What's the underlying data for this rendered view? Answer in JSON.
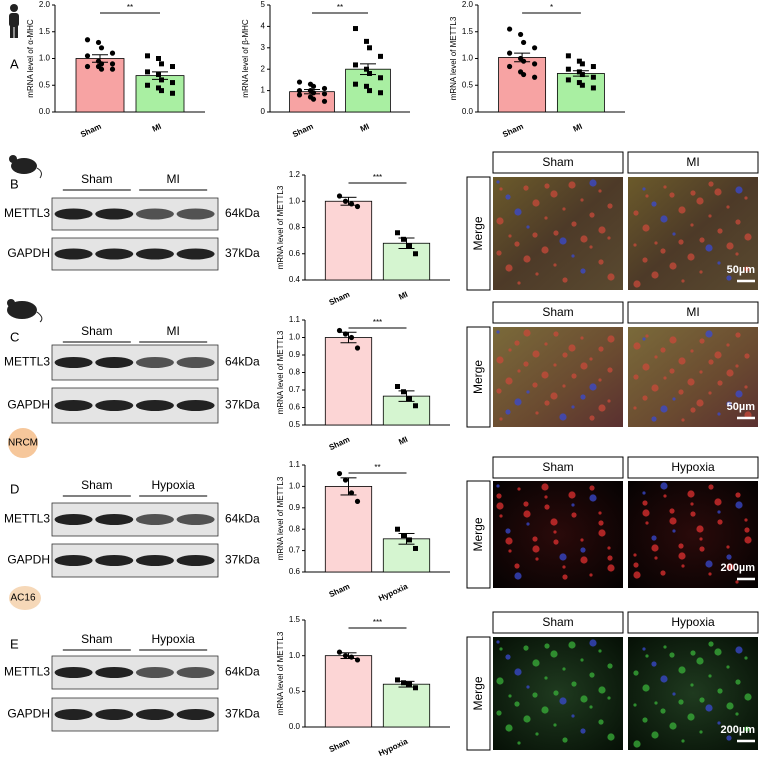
{
  "chart_data": [
    {
      "type": "bar",
      "ylabel": "mRNA level of α-MHC",
      "categories": [
        "Sham",
        "MI"
      ],
      "colors": [
        "#f7a3a3",
        "#a9efa2"
      ],
      "values": [
        1.0,
        0.68
      ],
      "errors": [
        0.07,
        0.07
      ],
      "significance": "**",
      "points": [
        [
          1.35,
          1.3,
          1.2,
          1.1,
          1.05,
          0.95,
          0.9,
          0.9,
          0.85,
          0.85,
          0.8,
          0.8
        ],
        [
          1.05,
          1.0,
          0.9,
          0.85,
          0.75,
          0.7,
          0.6,
          0.55,
          0.5,
          0.45,
          0.4,
          0.35
        ]
      ],
      "ylim": [
        0,
        2.0
      ],
      "yticks": [
        {
          "value": 0,
          "label": "0.0"
        },
        0.5,
        {
          "value": 1.0,
          "label": "1.0"
        },
        1.5,
        {
          "value": 2.0,
          "label": "2.0"
        }
      ]
    },
    {
      "type": "bar",
      "ylabel": "mRNA level of β-MHC",
      "categories": [
        "Sham",
        "MI"
      ],
      "colors": [
        "#f7a3a3",
        "#a9efa2"
      ],
      "values": [
        0.95,
        2.0
      ],
      "errors": [
        0.1,
        0.25
      ],
      "significance": "**",
      "points": [
        [
          1.4,
          1.3,
          1.2,
          1.1,
          1.0,
          1.0,
          0.9,
          0.85,
          0.8,
          0.7,
          0.6,
          0.5
        ],
        [
          3.9,
          3.3,
          3.0,
          2.6,
          2.2,
          2.0,
          1.8,
          1.6,
          1.3,
          1.2,
          1.0,
          0.9
        ]
      ],
      "ylim": [
        0,
        5
      ],
      "yticks": [
        0,
        1,
        2,
        3,
        4,
        5
      ]
    },
    {
      "type": "bar",
      "ylabel": "mRNA level of METTL3",
      "categories": [
        "Sham",
        "MI"
      ],
      "colors": [
        "#f7a3a3",
        "#a9efa2"
      ],
      "values": [
        1.02,
        0.72
      ],
      "errors": [
        0.08,
        0.05
      ],
      "significance": "*",
      "points": [
        [
          1.55,
          1.45,
          1.3,
          1.2,
          1.1,
          1.0,
          0.95,
          0.9,
          0.85,
          0.75,
          0.7,
          0.65
        ],
        [
          1.05,
          0.95,
          0.9,
          0.85,
          0.8,
          0.75,
          0.7,
          0.65,
          0.6,
          0.55,
          0.5,
          0.45
        ]
      ],
      "ylim": [
        0,
        2.0
      ],
      "yticks": [
        {
          "value": 0,
          "label": "0.0"
        },
        0.5,
        {
          "value": 1.0,
          "label": "1.0"
        },
        1.5,
        {
          "value": 2.0,
          "label": "2.0"
        }
      ]
    },
    {
      "type": "bar",
      "ylabel": "mRNA level of METTL3",
      "categories": [
        "Sham",
        "MI"
      ],
      "colors": [
        "#fcd5d5",
        "#d5f5d0"
      ],
      "values": [
        1.0,
        0.68
      ],
      "errors": [
        0.03,
        0.04
      ],
      "significance": "***",
      "points": [
        [
          1.04,
          1.0,
          0.98,
          0.96
        ],
        [
          0.76,
          0.71,
          0.66,
          0.6
        ]
      ],
      "ylim": [
        0.4,
        1.2
      ],
      "yticks": [
        0.4,
        0.6,
        0.8,
        {
          "value": 1.0,
          "label": "1.0"
        },
        1.2
      ]
    },
    {
      "type": "bar",
      "ylabel": "mRNA level of METTL3",
      "categories": [
        "Sham",
        "MI"
      ],
      "colors": [
        "#fcd5d5",
        "#d5f5d0"
      ],
      "values": [
        1.0,
        0.665
      ],
      "errors": [
        0.03,
        0.03
      ],
      "significance": "***",
      "points": [
        [
          1.04,
          1.02,
          1.0,
          0.94
        ],
        [
          0.72,
          0.69,
          0.65,
          0.61
        ]
      ],
      "ylim": [
        0.5,
        1.1
      ],
      "yticks": [
        0.5,
        0.6,
        0.7,
        0.8,
        0.9,
        {
          "value": 1.0,
          "label": "1.0"
        },
        1.1
      ]
    },
    {
      "type": "bar",
      "ylabel": "mRNA level of METTL3",
      "categories": [
        "Sham",
        "Hypoxia"
      ],
      "colors": [
        "#fcd5d5",
        "#d5f5d0"
      ],
      "values": [
        1.0,
        0.755
      ],
      "errors": [
        0.04,
        0.025
      ],
      "significance": "**",
      "points": [
        [
          1.06,
          1.03,
          0.97,
          0.93
        ],
        [
          0.8,
          0.77,
          0.75,
          0.71
        ]
      ],
      "ylim": [
        0.6,
        1.1
      ],
      "yticks": [
        0.6,
        0.7,
        0.8,
        0.9,
        {
          "value": 1.0,
          "label": "1.0"
        },
        1.1
      ]
    },
    {
      "type": "bar",
      "ylabel": "mRNA level of METTL3",
      "categories": [
        "Sham",
        "Hypoxia"
      ],
      "colors": [
        "#fcd5d5",
        "#d5f5d0"
      ],
      "values": [
        1.0,
        0.6
      ],
      "errors": [
        0.04,
        0.04
      ],
      "significance": "***",
      "points": [
        [
          1.05,
          1.0,
          0.98,
          0.94
        ],
        [
          0.66,
          0.62,
          0.6,
          0.55
        ]
      ],
      "ylim": [
        0,
        1.5
      ],
      "yticks": [
        {
          "value": 0,
          "label": "0.0"
        },
        0.5,
        {
          "value": 1.0,
          "label": "1.0"
        },
        1.5
      ]
    }
  ],
  "panels": [
    {
      "letter": "A"
    },
    {
      "letter": "B",
      "blot": {
        "groups": [
          "Sham",
          "MI"
        ],
        "rows": [
          {
            "name": "METTL3",
            "kda": "64kDa"
          },
          {
            "name": "GAPDH",
            "kda": "37kDa"
          }
        ]
      },
      "images": {
        "titles": [
          "Sham",
          "MI"
        ],
        "side": "Merge",
        "scale": "50µm"
      }
    },
    {
      "letter": "C",
      "blot": {
        "groups": [
          "Sham",
          "MI"
        ],
        "rows": [
          {
            "name": "METTL3",
            "kda": "64kDa"
          },
          {
            "name": "GAPDH",
            "kda": "37kDa"
          }
        ]
      },
      "images": {
        "titles": [
          "Sham",
          "MI"
        ],
        "side": "Merge",
        "scale": "50µm"
      }
    },
    {
      "letter": "D",
      "icon": "NRCM",
      "blot": {
        "groups": [
          "Sham",
          "Hypoxia"
        ],
        "rows": [
          {
            "name": "METTL3",
            "kda": "64kDa"
          },
          {
            "name": "GAPDH",
            "kda": "37kDa"
          }
        ]
      },
      "images": {
        "titles": [
          "Sham",
          "Hypoxia"
        ],
        "side": "Merge",
        "scale": "200µm"
      }
    },
    {
      "letter": "E",
      "icon": "AC16",
      "blot": {
        "groups": [
          "Sham",
          "Hypoxia"
        ],
        "rows": [
          {
            "name": "METTL3",
            "kda": "64kDa"
          },
          {
            "name": "GAPDH",
            "kda": "37kDa"
          }
        ]
      },
      "images": {
        "titles": [
          "Sham",
          "Hypoxia"
        ],
        "side": "Merge",
        "scale": "200µm"
      }
    }
  ]
}
